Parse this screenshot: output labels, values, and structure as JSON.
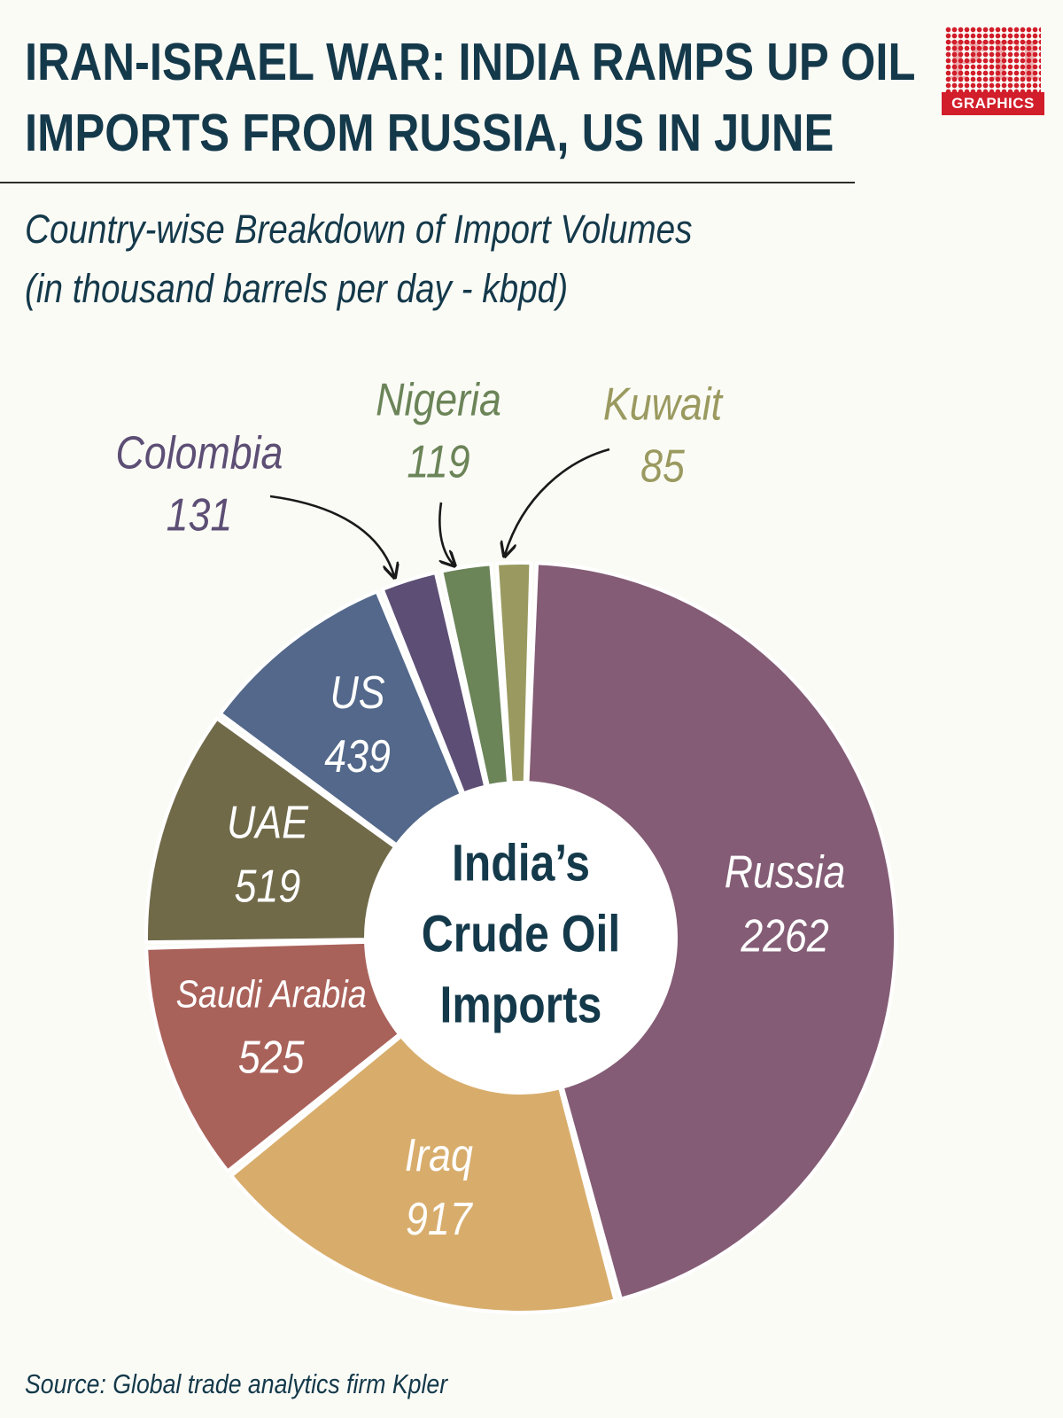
{
  "header": {
    "title_line1": "IRAN-ISRAEL WAR: INDIA RAMPS UP OIL",
    "title_line2": "IMPORTS FROM RUSSIA, US IN JUNE",
    "subtitle_line1": "Country-wise Breakdown of Import Volumes",
    "subtitle_line2": "(in thousand barrels per day - kbpd)"
  },
  "logo": {
    "mark_text": "PTI",
    "badge_text": "GRAPHICS",
    "color": "#d21e2b"
  },
  "source": "Source: Global trade analytics firm Kpler",
  "chart_data": {
    "type": "pie",
    "variant": "donut",
    "center_label": [
      "India’s",
      "Crude Oil",
      "Imports"
    ],
    "unit": "kbpd",
    "slices": [
      {
        "label": "Russia",
        "value": 2262,
        "color": "#845c75",
        "label_color": "#ffffff"
      },
      {
        "label": "Iraq",
        "value": 917,
        "color": "#d8ad6c",
        "label_color": "#ffffff"
      },
      {
        "label": "Saudi Arabia",
        "value": 525,
        "color": "#a9625a",
        "label_color": "#ffffff"
      },
      {
        "label": "UAE",
        "value": 519,
        "color": "#706a49",
        "label_color": "#ffffff"
      },
      {
        "label": "US",
        "value": 439,
        "color": "#53688a",
        "label_color": "#ffffff"
      },
      {
        "label": "Colombia",
        "value": 131,
        "color": "#5c4e74",
        "label_color": "#5c4e74"
      },
      {
        "label": "Nigeria",
        "value": 119,
        "color": "#6b8458",
        "label_color": "#6b8458"
      },
      {
        "label": "Kuwait",
        "value": 85,
        "color": "#9a9a60",
        "label_color": "#9a9a60"
      }
    ]
  }
}
